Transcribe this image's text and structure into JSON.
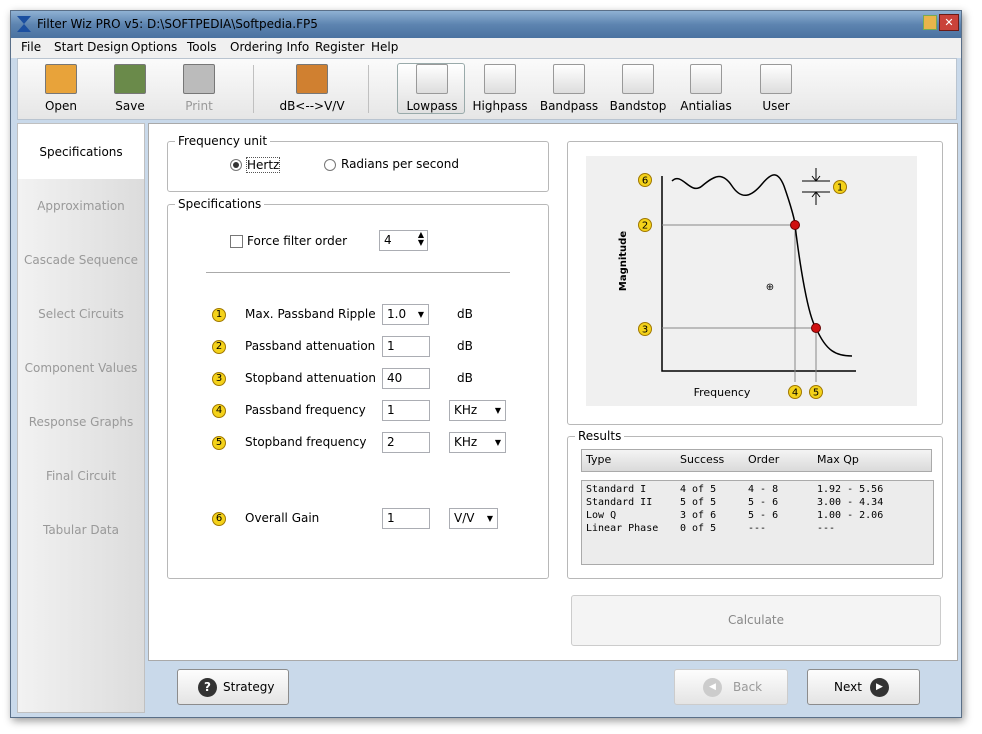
{
  "window": {
    "title": "Filter Wiz PRO v5: D:\\SOFTPEDIA\\Softpedia.FP5"
  },
  "menu": [
    "File",
    "Start Design",
    "Options",
    "Tools",
    "Ordering Info",
    "Register",
    "Help"
  ],
  "toolbar": [
    "Open",
    "Save",
    "Print",
    "dB<-->V/V",
    "Lowpass",
    "Highpass",
    "Bandpass",
    "Bandstop",
    "Antialias",
    "User"
  ],
  "sidebar": [
    "Specifications",
    "Approximation",
    "Cascade Sequence",
    "Select Circuits",
    "Component Values",
    "Response Graphs",
    "Final Circuit",
    "Tabular Data"
  ],
  "frequency_unit": {
    "title": "Frequency unit",
    "options": [
      "Hertz",
      "Radians per second"
    ]
  },
  "specifications": {
    "title": "Specifications",
    "force_order_label": "Force filter order",
    "force_order_value": "4",
    "rows": [
      {
        "badge": "1",
        "label": "Max. Passband Ripple",
        "value": "1.0",
        "unit": "dB"
      },
      {
        "badge": "2",
        "label": "Passband attenuation",
        "value": "1",
        "unit": "dB"
      },
      {
        "badge": "3",
        "label": "Stopband attenuation",
        "value": "40",
        "unit": "dB"
      },
      {
        "badge": "4",
        "label": "Passband frequency",
        "value": "1",
        "unit": "KHz"
      },
      {
        "badge": "5",
        "label": "Stopband frequency",
        "value": "2",
        "unit": "KHz"
      },
      {
        "badge": "6",
        "label": "Overall Gain",
        "value": "1",
        "unit": "V/V"
      }
    ]
  },
  "graph": {
    "y_label": "Magnitude",
    "x_label": "Frequency",
    "markers": [
      "6",
      "2",
      "3",
      "4",
      "5",
      "1"
    ]
  },
  "results": {
    "title": "Results",
    "columns": [
      "Type",
      "Success",
      "Order",
      "Max Qp"
    ],
    "rows": [
      [
        "Standard I",
        "4 of 5",
        "4 - 8",
        "1.92 - 5.56"
      ],
      [
        "Standard II",
        "5 of 5",
        "5 - 6",
        "3.00 - 4.34"
      ],
      [
        "Low Q",
        "3 of 6",
        "5 - 6",
        "1.00 - 2.06"
      ],
      [
        "Linear Phase",
        "0 of 5",
        "---",
        "---"
      ]
    ]
  },
  "buttons": {
    "calculate": "Calculate",
    "strategy": "Strategy",
    "back": "Back",
    "next": "Next"
  }
}
